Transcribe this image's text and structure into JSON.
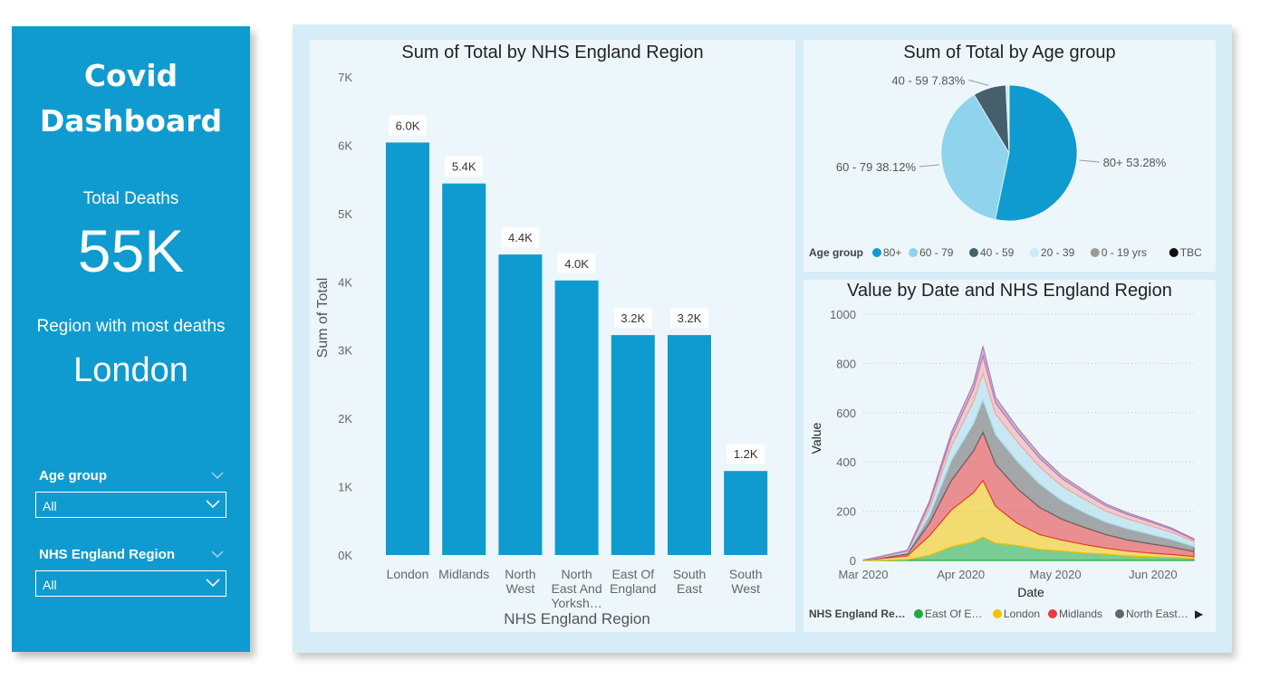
{
  "sidebar": {
    "title_line1": "Covid",
    "title_line2": "Dashboard",
    "total_deaths_label": "Total Deaths",
    "total_deaths_value": "55K",
    "region_label": "Region with most deaths",
    "region_value": "London",
    "filters": [
      {
        "label": "Age group",
        "selected": "All"
      },
      {
        "label": "NHS England Region",
        "selected": "All"
      }
    ]
  },
  "colors": {
    "sidebar_bg": "#0f9bcf",
    "canvas_bg": "#d6edf7",
    "panel_bg": "#edf7fb",
    "bar": "#0f9bcf"
  },
  "chart_data": [
    {
      "type": "bar",
      "title": "Sum of Total by NHS England Region",
      "xlabel": "NHS England Region",
      "ylabel": "Sum of Total",
      "categories": [
        "London",
        "Midlands",
        "North West",
        "North East And Yorksh…",
        "East Of England",
        "South East",
        "South West"
      ],
      "category_lines": [
        [
          "London"
        ],
        [
          "Midlands"
        ],
        [
          "North",
          "West"
        ],
        [
          "North",
          "East And",
          "Yorksh…"
        ],
        [
          "East Of",
          "England"
        ],
        [
          "South",
          "East"
        ],
        [
          "South",
          "West"
        ]
      ],
      "values": [
        6040,
        5440,
        4400,
        4020,
        3220,
        3220,
        1230
      ],
      "data_labels": [
        "6.0K",
        "5.4K",
        "4.4K",
        "4.0K",
        "3.2K",
        "3.2K",
        "1.2K"
      ],
      "yticks": [
        "0K",
        "1K",
        "2K",
        "3K",
        "4K",
        "5K",
        "6K",
        "7K"
      ],
      "ylim": [
        0,
        7000
      ]
    },
    {
      "type": "pie",
      "title": "Sum of Total by Age group",
      "slices": [
        {
          "label": "80+",
          "percent": 53.28,
          "color": "#0f9bcf",
          "data_label": "80+ 53.28%"
        },
        {
          "label": "60 - 79",
          "percent": 38.12,
          "color": "#8fd3ec",
          "data_label": "60 - 79 38.12%"
        },
        {
          "label": "40 - 59",
          "percent": 7.83,
          "color": "#455f6d",
          "data_label": "40 - 59 7.83%"
        },
        {
          "label": "20 - 39",
          "percent": 0.65,
          "color": "#cfeaf5"
        },
        {
          "label": "0 - 19 yrs",
          "percent": 0.05,
          "color": "#9a9a9a"
        },
        {
          "label": "TBC",
          "percent": 0.07,
          "color": "#111111"
        }
      ],
      "legend_title": "Age group",
      "legend": [
        {
          "label": "80+",
          "color": "#0f9bcf"
        },
        {
          "label": "60 - 79",
          "color": "#8fd3ec"
        },
        {
          "label": "40 - 59",
          "color": "#455f6d"
        },
        {
          "label": "20 - 39",
          "color": "#cfeaf5"
        },
        {
          "label": "0 - 19 yrs",
          "color": "#9a9a9a"
        },
        {
          "label": "TBC",
          "color": "#111111"
        }
      ]
    },
    {
      "type": "area",
      "stacked": true,
      "title": "Value by Date and NHS England Region",
      "xlabel": "Date",
      "ylabel": "Value",
      "xticks": [
        "Mar 2020",
        "Apr 2020",
        "May 2020",
        "Jun 2020"
      ],
      "yticks": [
        "0",
        "200",
        "400",
        "600",
        "800",
        "1000"
      ],
      "ylim": [
        0,
        1000
      ],
      "x": [
        "2020-03-01",
        "2020-03-15",
        "2020-03-22",
        "2020-03-29",
        "2020-04-05",
        "2020-04-08",
        "2020-04-12",
        "2020-04-19",
        "2020-04-26",
        "2020-05-03",
        "2020-05-10",
        "2020-05-17",
        "2020-05-24",
        "2020-05-31",
        "2020-06-07",
        "2020-06-14"
      ],
      "series": [
        {
          "name": "East Of E…",
          "color": "#1aab40",
          "values": [
            0,
            3,
            20,
            55,
            75,
            95,
            70,
            60,
            45,
            38,
            30,
            25,
            18,
            15,
            12,
            8
          ]
        },
        {
          "name": "London",
          "color": "#f5c400",
          "values": [
            1,
            15,
            80,
            150,
            200,
            230,
            150,
            90,
            60,
            45,
            35,
            25,
            20,
            15,
            12,
            8
          ]
        },
        {
          "name": "Midlands",
          "color": "#e83b3b",
          "values": [
            0,
            8,
            50,
            120,
            170,
            195,
            170,
            140,
            110,
            85,
            70,
            55,
            45,
            38,
            30,
            20
          ]
        },
        {
          "name": "North East…",
          "color": "#666666",
          "values": [
            0,
            5,
            30,
            80,
            110,
            130,
            120,
            110,
            95,
            75,
            60,
            50,
            45,
            38,
            30,
            20
          ]
        },
        {
          "name": "",
          "color": "#a8dceb",
          "values": [
            0,
            5,
            30,
            60,
            90,
            110,
            85,
            80,
            70,
            60,
            55,
            45,
            40,
            35,
            30,
            20
          ]
        },
        {
          "name": "",
          "color": "#f2a7a7",
          "values": [
            0,
            3,
            20,
            35,
            50,
            70,
            45,
            40,
            35,
            30,
            25,
            22,
            18,
            16,
            12,
            8
          ]
        },
        {
          "name": "",
          "color": "#b07fb5",
          "values": [
            0,
            2,
            10,
            20,
            25,
            40,
            22,
            18,
            15,
            12,
            10,
            8,
            7,
            6,
            5,
            4
          ]
        }
      ],
      "legend_title": "NHS England Re…",
      "legend": [
        {
          "label": "East Of E…",
          "color": "#1aab40"
        },
        {
          "label": "London",
          "color": "#f5c400"
        },
        {
          "label": "Midlands",
          "color": "#e83b3b"
        },
        {
          "label": "North East…",
          "color": "#666666"
        }
      ],
      "legend_more": "▶"
    }
  ]
}
